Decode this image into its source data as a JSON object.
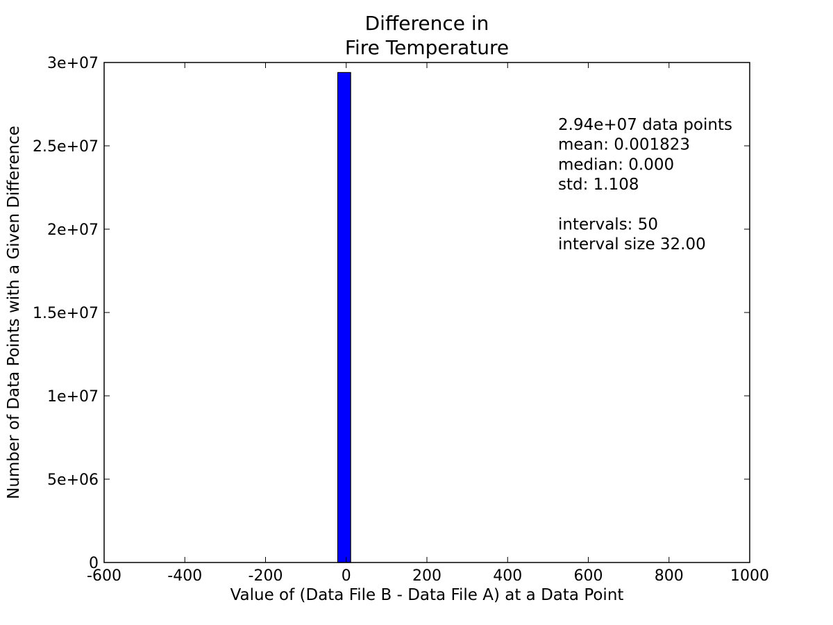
{
  "chart_data": {
    "type": "bar",
    "title_lines": [
      "Difference in",
      "Fire Temperature"
    ],
    "xlabel": "Value of (Data File B - Data File A) at a Data Point",
    "ylabel": "Number of Data Points with a Given Difference",
    "xlim": [
      -600,
      1000
    ],
    "ylim": [
      0,
      30000000
    ],
    "x_ticks": [
      {
        "value": -600,
        "label": "-600"
      },
      {
        "value": -400,
        "label": "-400"
      },
      {
        "value": -200,
        "label": "-200"
      },
      {
        "value": 0,
        "label": "0"
      },
      {
        "value": 200,
        "label": "200"
      },
      {
        "value": 400,
        "label": "400"
      },
      {
        "value": 600,
        "label": "600"
      },
      {
        "value": 800,
        "label": "800"
      },
      {
        "value": 1000,
        "label": "1000"
      }
    ],
    "y_ticks": [
      {
        "value": 0,
        "label": "0"
      },
      {
        "value": 5000000,
        "label": "5e+06"
      },
      {
        "value": 10000000,
        "label": "1e+07"
      },
      {
        "value": 15000000,
        "label": "1.5e+07"
      },
      {
        "value": 20000000,
        "label": "2e+07"
      },
      {
        "value": 25000000,
        "label": "2.5e+07"
      },
      {
        "value": 30000000,
        "label": "3e+07"
      }
    ],
    "bins": [
      {
        "x_start": -21,
        "x_end": 11,
        "count": 29400000
      }
    ],
    "bar_color": "#0000ff",
    "grid": false,
    "annotations": [
      "2.94e+07 data points",
      "mean: 0.001823",
      "median: 0.000",
      "std: 1.108",
      "",
      "intervals: 50",
      "interval size 32.00"
    ]
  }
}
